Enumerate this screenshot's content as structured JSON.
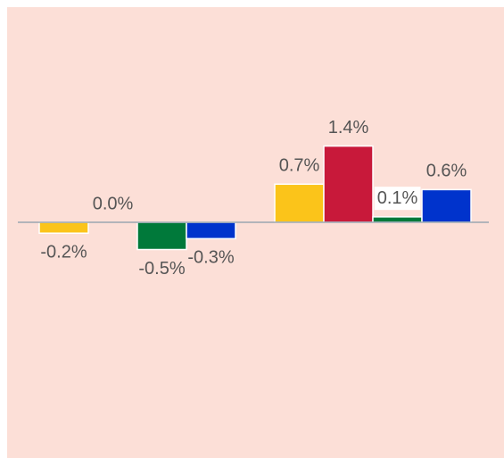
{
  "chart_data": {
    "type": "bar",
    "categories": [
      null,
      null
    ],
    "series": [
      {
        "name": null,
        "color": "#fbc41a",
        "values": [
          -0.2,
          0.7
        ],
        "value_labels": [
          "-0.2%",
          "0.7%"
        ]
      },
      {
        "name": null,
        "color": "#c8193a",
        "values": [
          0.0,
          1.4
        ],
        "value_labels": [
          "0.0%",
          "1.4%"
        ]
      },
      {
        "name": null,
        "color": "#00793a",
        "values": [
          -0.5,
          0.1
        ],
        "value_labels": [
          "-0.5%",
          "0.1%"
        ]
      },
      {
        "name": null,
        "color": "#0033cc",
        "values": [
          -0.3,
          0.6
        ],
        "value_labels": [
          "-0.3%",
          "0.6%"
        ]
      }
    ],
    "ylim": [
      -4,
      4
    ]
  }
}
